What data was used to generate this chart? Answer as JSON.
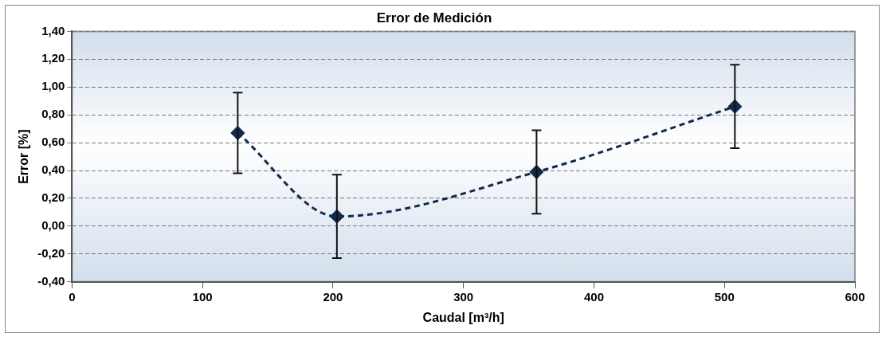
{
  "chart_data": {
    "type": "line",
    "title": "Error de Medición",
    "xlabel": "Caudal [m³/h]",
    "ylabel": "Error [%]",
    "x": [
      127,
      203,
      356,
      508
    ],
    "series": [
      {
        "color": "#13294b",
        "values": [
          0.67,
          0.07,
          0.39,
          0.86
        ],
        "errors": [
          0.29,
          0.3,
          0.3,
          0.3
        ]
      }
    ],
    "xlim": [
      0,
      600
    ],
    "xticks": [
      0,
      100,
      200,
      300,
      400,
      500,
      600
    ],
    "ylim": [
      -0.4,
      1.4
    ],
    "yticks": [
      {
        "value": -0.4,
        "label": "-0,40"
      },
      {
        "value": -0.2,
        "label": "-0,20"
      },
      {
        "value": 0,
        "label": "0,00"
      },
      {
        "value": 0.2,
        "label": "0,20"
      },
      {
        "value": 0.4,
        "label": "0,40"
      },
      {
        "value": 0.6,
        "label": "0,60"
      },
      {
        "value": 0.8,
        "label": "0,80"
      },
      {
        "value": 1,
        "label": "1,00"
      },
      {
        "value": 1.2,
        "label": "1,20"
      },
      {
        "value": 1.4,
        "label": "1,40"
      }
    ],
    "grid": "y",
    "legend": false,
    "marker": "diamond",
    "line_style": "dashed"
  }
}
